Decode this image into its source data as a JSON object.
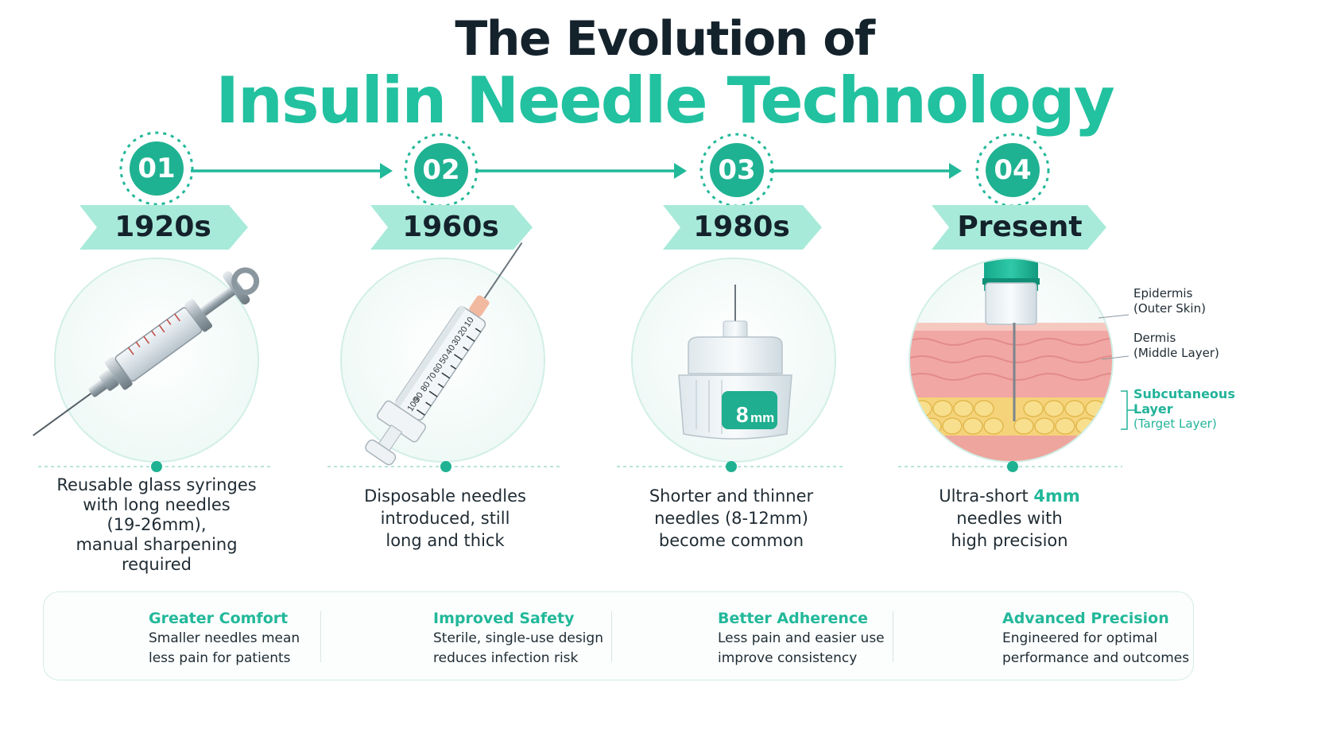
{
  "title": {
    "line1": "The Evolution of",
    "line2": "Insulin Needle Technology"
  },
  "colors": {
    "accent": "#22c1a0",
    "accent_light": "#a8ead9",
    "dark": "#14222c",
    "skin_pink": "#f3a6a6",
    "fat_yellow": "#f3d26b"
  },
  "steps": [
    {
      "number": "01",
      "era": "1920s",
      "icon": "glass-syringe-icon",
      "description": [
        "Reusable glass syringes",
        "with long needles",
        "(19-26mm),",
        "manual sharpening",
        "required"
      ]
    },
    {
      "number": "02",
      "era": "1960s",
      "icon": "disposable-syringe-icon",
      "scale_marks": [
        "10",
        "20",
        "30",
        "40",
        "50",
        "60",
        "70",
        "80",
        "90",
        "100"
      ],
      "description": [
        "Disposable needles",
        "introduced, still",
        "long and thick"
      ]
    },
    {
      "number": "03",
      "era": "1980s",
      "icon": "pen-needle-icon",
      "needle_label": "8",
      "needle_unit": "mm",
      "description": [
        "Shorter and thinner",
        "needles (8-12mm)",
        "become common"
      ]
    },
    {
      "number": "04",
      "era": "Present",
      "icon": "skin-layers-icon",
      "description_pre": "Ultra-short ",
      "description_highlight": "4mm",
      "description_rest": [
        "needles with",
        "high precision"
      ],
      "layers": [
        {
          "name": "Epidermis",
          "detail": "(Outer Skin)"
        },
        {
          "name": "Dermis",
          "detail": "(Middle Layer)"
        },
        {
          "name": "Subcutaneous",
          "name2": "Layer",
          "detail": "(Target Layer)"
        }
      ]
    }
  ],
  "benefits": [
    {
      "icon": "target-icon",
      "title": "Greater Comfort",
      "lines": [
        "Smaller needles mean",
        "less pain for patients"
      ]
    },
    {
      "icon": "shield-icon",
      "title": "Improved Safety",
      "lines": [
        "Sterile, single-use design",
        "reduces infection risk"
      ]
    },
    {
      "icon": "feather-icon",
      "title": "Better Adherence",
      "lines": [
        "Less pain and easier use",
        "improve consistency"
      ]
    },
    {
      "icon": "bar-chart-icon",
      "title": "Advanced Precision",
      "lines": [
        "Engineered for optimal",
        "performance and outcomes"
      ]
    }
  ]
}
